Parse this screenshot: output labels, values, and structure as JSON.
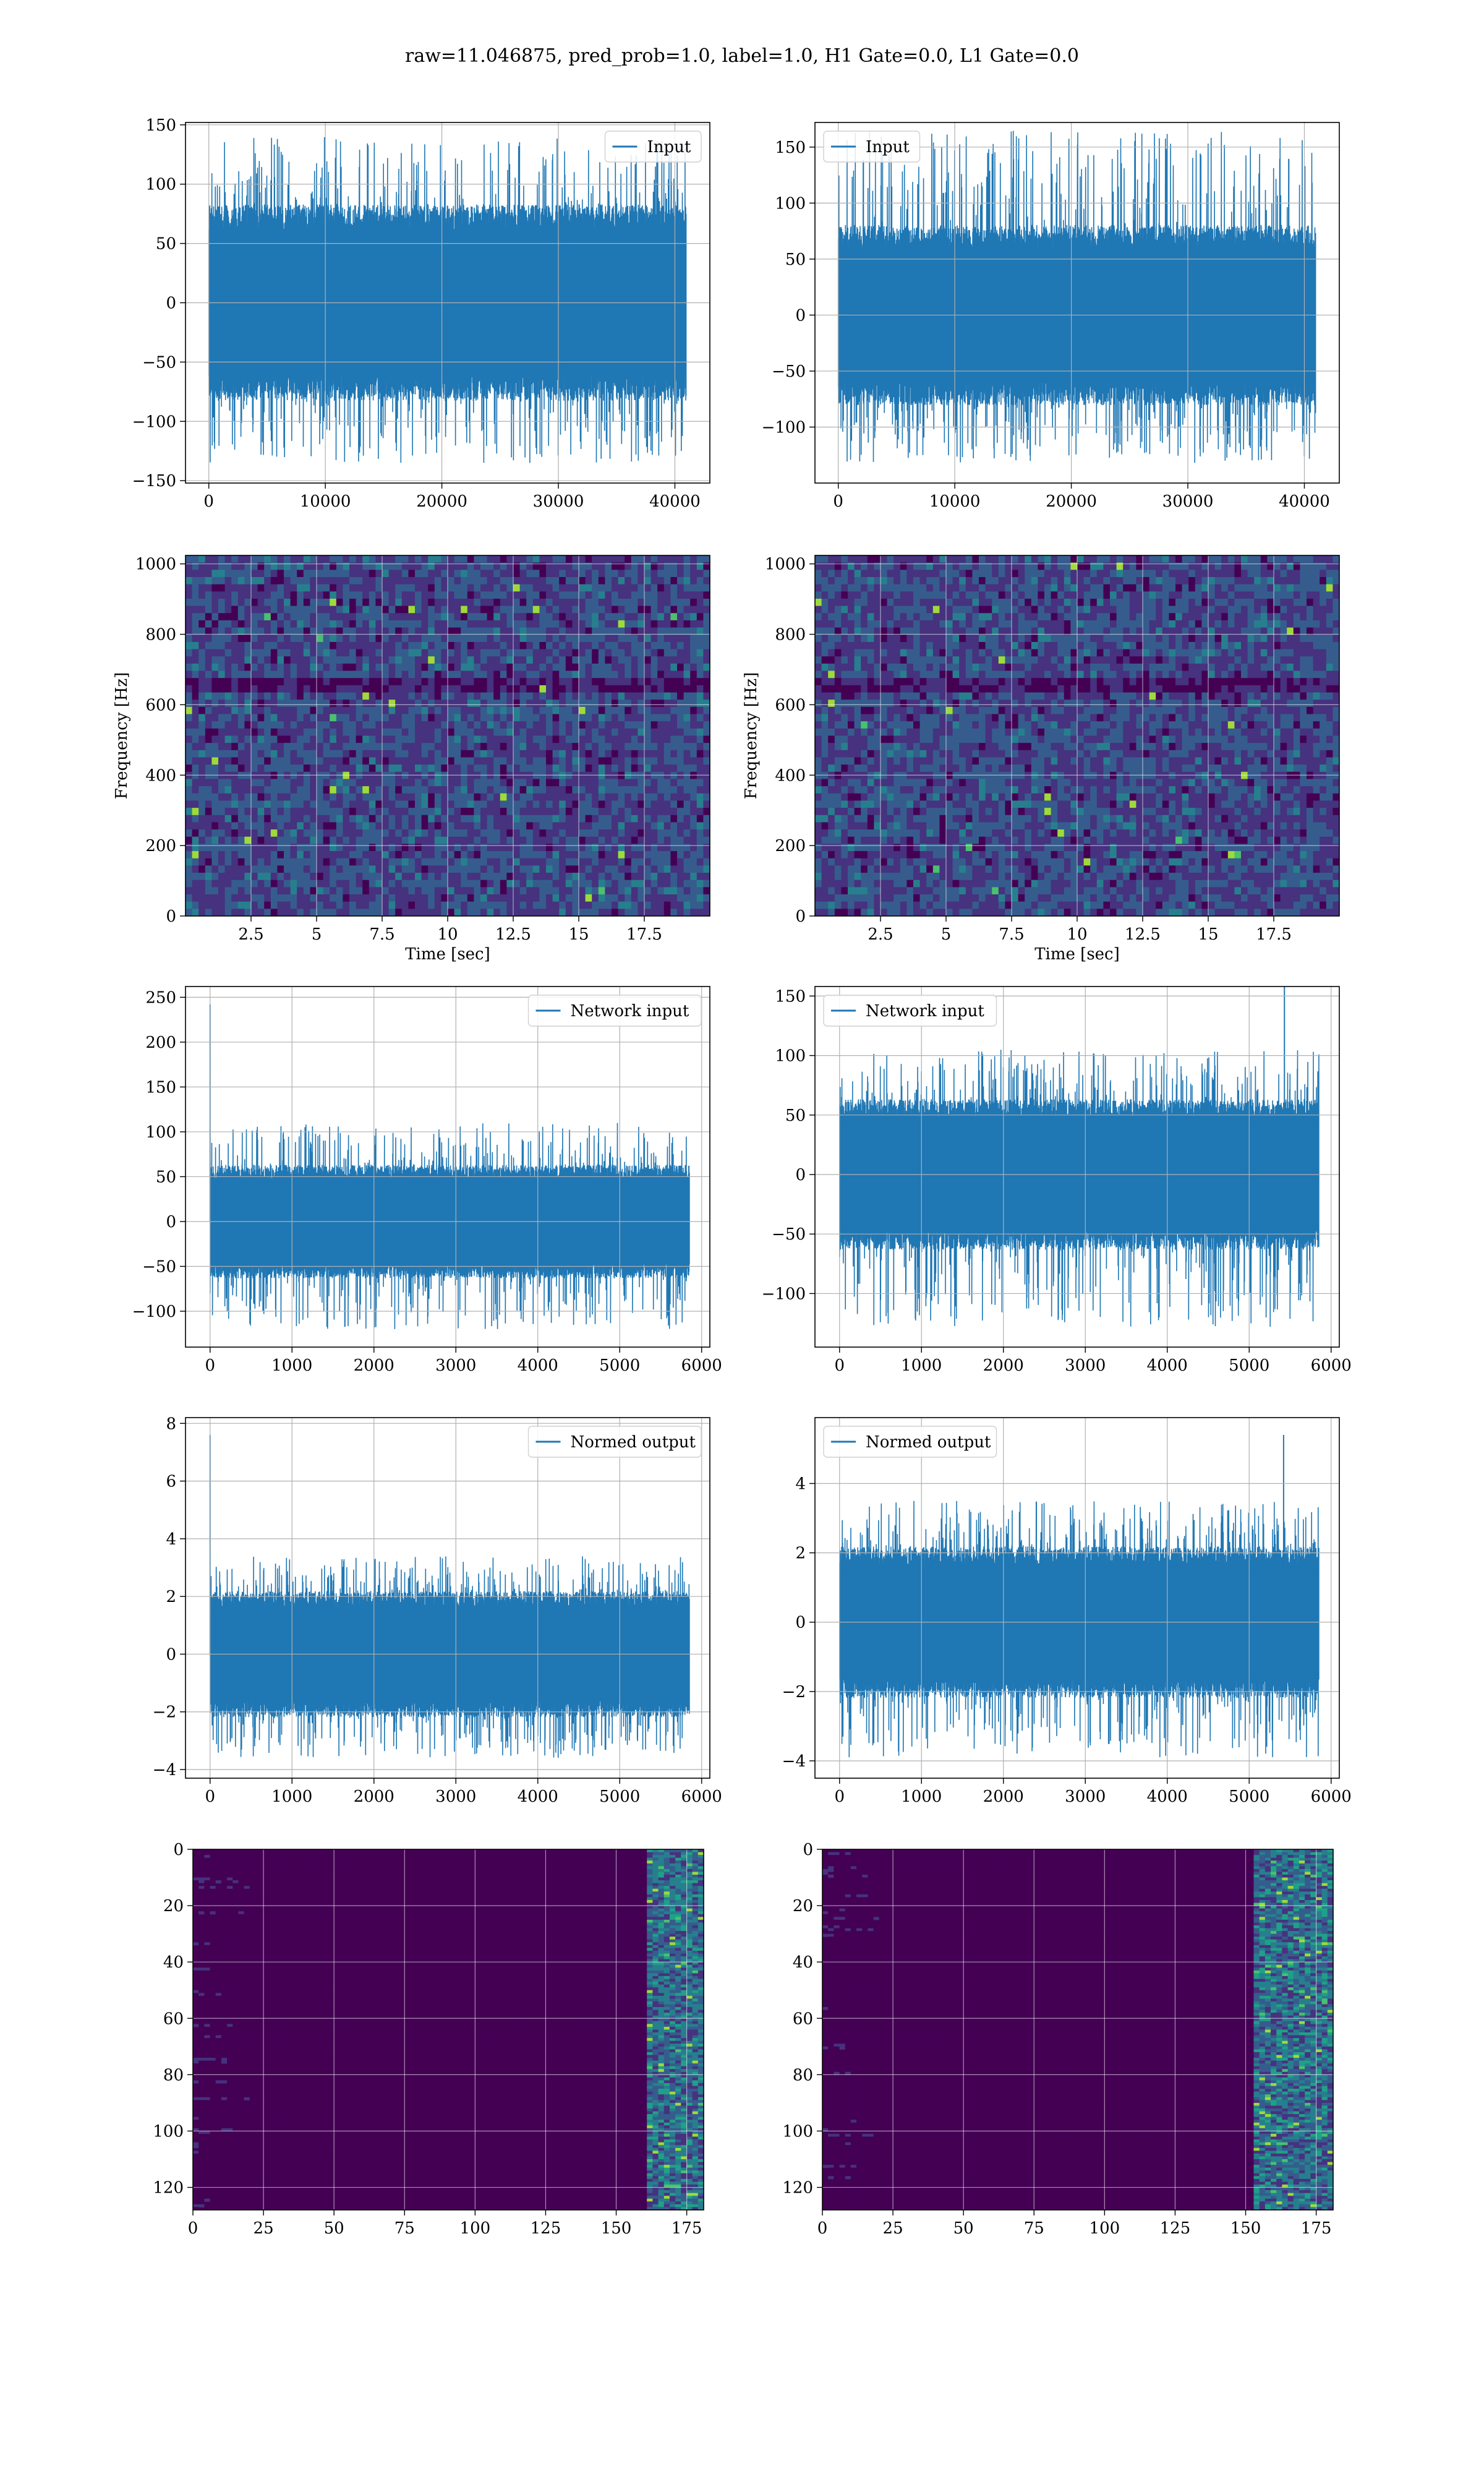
{
  "figure": {
    "title": "raw=11.046875, pred_prob=1.0, label=1.0, H1 Gate=0.0, L1 Gate=0.0"
  },
  "chart_data": [
    {
      "id": "h1-input",
      "type": "line",
      "series": [
        {
          "name": "Input",
          "color": "#1f77b4"
        }
      ],
      "x_range": [
        0,
        40960
      ],
      "xlim": [
        -2000,
        43000
      ],
      "ylim": [
        -152,
        152
      ],
      "xticks": [
        0,
        10000,
        20000,
        30000,
        40000
      ],
      "yticks": [
        -150,
        -100,
        -50,
        0,
        50,
        100,
        150
      ],
      "envelope": {
        "core": 72,
        "peak": 140,
        "min": -135
      },
      "legend": "upper right",
      "grid": true
    },
    {
      "id": "l1-input",
      "type": "line",
      "series": [
        {
          "name": "Input",
          "color": "#1f77b4"
        }
      ],
      "x_range": [
        0,
        40960
      ],
      "xlim": [
        -2000,
        43000
      ],
      "ylim": [
        -150,
        172
      ],
      "xticks": [
        0,
        10000,
        20000,
        30000,
        40000
      ],
      "yticks": [
        -100,
        -50,
        0,
        50,
        100,
        150
      ],
      "envelope": {
        "core": 70,
        "peak": 165,
        "min": -132
      },
      "legend": "upper left",
      "grid": true
    },
    {
      "id": "h1-spectrogram",
      "type": "heatmap",
      "colormap": "viridis",
      "xlim": [
        0,
        20
      ],
      "ylim": [
        0,
        1024
      ],
      "xticks": [
        2.5,
        5.0,
        7.5,
        10.0,
        12.5,
        15.0,
        17.5
      ],
      "yticks": [
        0,
        200,
        400,
        600,
        800,
        1000
      ],
      "xlabel": "Time [sec]",
      "ylabel": "Frequency [Hz]",
      "grid": true
    },
    {
      "id": "l1-spectrogram",
      "type": "heatmap",
      "colormap": "viridis",
      "xlim": [
        0,
        20
      ],
      "ylim": [
        0,
        1024
      ],
      "xticks": [
        2.5,
        5.0,
        7.5,
        10.0,
        12.5,
        15.0,
        17.5
      ],
      "yticks": [
        0,
        200,
        400,
        600,
        800,
        1000
      ],
      "xlabel": "Time [sec]",
      "ylabel": "Frequency [Hz]",
      "grid": true
    },
    {
      "id": "h1-network-input",
      "type": "line",
      "series": [
        {
          "name": "Network input",
          "color": "#1f77b4"
        }
      ],
      "x_range": [
        0,
        5850
      ],
      "xlim": [
        -300,
        6100
      ],
      "ylim": [
        -140,
        262
      ],
      "xticks": [
        0,
        1000,
        2000,
        3000,
        4000,
        5000,
        6000
      ],
      "yticks": [
        -100,
        -50,
        0,
        50,
        100,
        150,
        200,
        250
      ],
      "envelope": {
        "core": 55,
        "peak": 110,
        "min": -120
      },
      "spike": {
        "x": 0,
        "y": 242
      },
      "legend": "upper right",
      "grid": true
    },
    {
      "id": "l1-network-input",
      "type": "line",
      "series": [
        {
          "name": "Network input",
          "color": "#1f77b4"
        }
      ],
      "x_range": [
        0,
        5850
      ],
      "xlim": [
        -300,
        6100
      ],
      "ylim": [
        -145,
        158
      ],
      "xticks": [
        0,
        1000,
        2000,
        3000,
        4000,
        5000,
        6000
      ],
      "yticks": [
        -100,
        -50,
        0,
        50,
        100,
        150
      ],
      "envelope": {
        "core": 55,
        "peak": 105,
        "min": -128
      },
      "spike": {
        "x": 5430,
        "y": 165
      },
      "legend": "upper left",
      "grid": true
    },
    {
      "id": "h1-normed-output",
      "type": "line",
      "series": [
        {
          "name": "Normed output",
          "color": "#1f77b4"
        }
      ],
      "x_range": [
        0,
        5850
      ],
      "xlim": [
        -300,
        6100
      ],
      "ylim": [
        -4.3,
        8.2
      ],
      "xticks": [
        0,
        1000,
        2000,
        3000,
        4000,
        5000,
        6000
      ],
      "yticks": [
        -4,
        -2,
        0,
        2,
        4,
        6,
        8
      ],
      "envelope": {
        "core": 1.9,
        "peak": 3.4,
        "min": -3.6
      },
      "spike": {
        "x": 0,
        "y": 7.6
      },
      "legend": "upper right",
      "grid": true
    },
    {
      "id": "l1-normed-output",
      "type": "line",
      "series": [
        {
          "name": "Normed output",
          "color": "#1f77b4"
        }
      ],
      "x_range": [
        0,
        5850
      ],
      "xlim": [
        -300,
        6100
      ],
      "ylim": [
        -4.5,
        5.9
      ],
      "xticks": [
        0,
        1000,
        2000,
        3000,
        4000,
        5000,
        6000
      ],
      "yticks": [
        -4,
        -2,
        0,
        2,
        4
      ],
      "envelope": {
        "core": 1.9,
        "peak": 3.5,
        "min": -3.9
      },
      "spike": {
        "x": 5420,
        "y": 5.4
      },
      "legend": "upper left",
      "grid": true
    },
    {
      "id": "h1-feature-map",
      "type": "heatmap",
      "colormap": "viridis",
      "xlim": [
        0,
        181
      ],
      "ylim": [
        128,
        0
      ],
      "xticks": [
        0,
        25,
        50,
        75,
        100,
        125,
        150,
        175
      ],
      "yticks": [
        0,
        20,
        40,
        60,
        80,
        100,
        120
      ],
      "hot_columns": [
        160,
        178
      ],
      "grid": true
    },
    {
      "id": "l1-feature-map",
      "type": "heatmap",
      "colormap": "viridis",
      "xlim": [
        0,
        181
      ],
      "ylim": [
        128,
        0
      ],
      "xticks": [
        0,
        25,
        50,
        75,
        100,
        125,
        150,
        175
      ],
      "yticks": [
        0,
        20,
        40,
        60,
        80,
        100,
        120
      ],
      "hot_columns": [
        152,
        181
      ],
      "grid": true
    }
  ]
}
